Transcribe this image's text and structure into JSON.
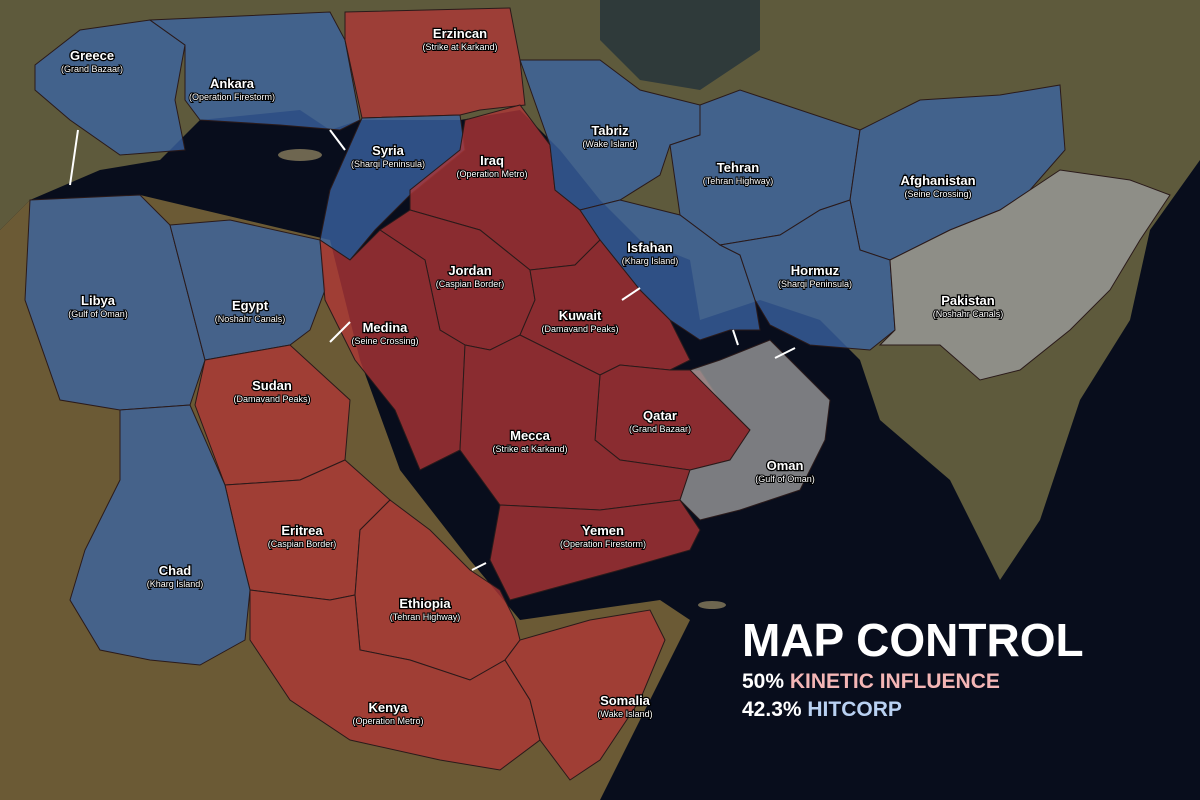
{
  "map": {
    "territories": [
      {
        "name": "Greece",
        "map": "(Grand Bazaar)",
        "color": "#3b64a3"
      },
      {
        "name": "Ankara",
        "map": "(Operation Firestorm)",
        "color": "#3b64a3"
      },
      {
        "name": "Erzincan",
        "map": "(Strike at Karkand)",
        "color": "#b03636"
      },
      {
        "name": "Syria",
        "map": "(Sharqi Peninsula)",
        "color": "#3b64a3"
      },
      {
        "name": "Iraq",
        "map": "(Operation Metro)",
        "color": "#b03636"
      },
      {
        "name": "Tabriz",
        "map": "(Wake Island)",
        "color": "#3b64a3"
      },
      {
        "name": "Tehran",
        "map": "(Tehran Highway)",
        "color": "#3b64a3"
      },
      {
        "name": "Afghanistan",
        "map": "(Seine Crossing)",
        "color": "#3b64a3"
      },
      {
        "name": "Libya",
        "map": "(Gulf of Oman)",
        "color": "#3b64a3"
      },
      {
        "name": "Egypt",
        "map": "(Noshahr Canals)",
        "color": "#3b64a3"
      },
      {
        "name": "Jordan",
        "map": "(Caspian Border)",
        "color": "#b03636"
      },
      {
        "name": "Isfahan",
        "map": "(Kharg Island)",
        "color": "#3b64a3"
      },
      {
        "name": "Hormuz",
        "map": "(Sharqi Peninsula)",
        "color": "#3b64a3"
      },
      {
        "name": "Pakistan",
        "map": "(Noshahr Canals)",
        "color": "#9c9c9c"
      },
      {
        "name": "Medina",
        "map": "(Seine Crossing)",
        "color": "#b03636"
      },
      {
        "name": "Kuwait",
        "map": "(Damavand Peaks)",
        "color": "#b03636"
      },
      {
        "name": "Sudan",
        "map": "(Damavand Peaks)",
        "color": "#b03636"
      },
      {
        "name": "Qatar",
        "map": "(Grand Bazaar)",
        "color": "#b03636"
      },
      {
        "name": "Mecca",
        "map": "(Strike at Karkand)",
        "color": "#b03636"
      },
      {
        "name": "Oman",
        "map": "(Gulf of Oman)",
        "color": "#9c9c9c"
      },
      {
        "name": "Eritrea",
        "map": "(Caspian Border)",
        "color": "#b03636"
      },
      {
        "name": "Yemen",
        "map": "(Operation Firestorm)",
        "color": "#b03636"
      },
      {
        "name": "Chad",
        "map": "(Kharg Island)",
        "color": "#3b64a3"
      },
      {
        "name": "Ethiopia",
        "map": "(Tehran Highway)",
        "color": "#b03636"
      },
      {
        "name": "Kenya",
        "map": "(Operation Metro)",
        "color": "#b03636"
      },
      {
        "name": "Somalia",
        "map": "(Wake Island)",
        "color": "#b03636"
      }
    ],
    "summary": {
      "title": "MAP CONTROL",
      "factions": [
        {
          "share": "50%",
          "name": "KINETIC INFLUENCE",
          "color": "#f4b6b6"
        },
        {
          "share": "42.3%",
          "name": "HITCORP",
          "color": "#b9d1f2"
        }
      ]
    }
  }
}
